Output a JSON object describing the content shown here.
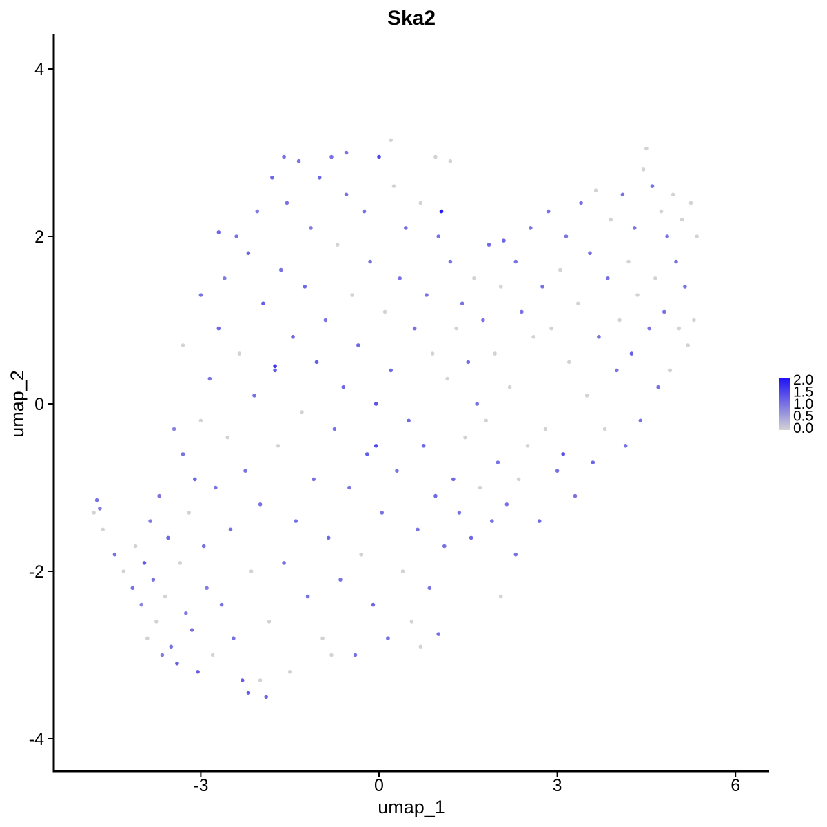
{
  "chart_data": {
    "type": "scatter",
    "title": "Ska2",
    "xlabel": "umap_1",
    "ylabel": "umap_2",
    "xlim": [
      -5.8,
      6.5
    ],
    "ylim": [
      -4.35,
      4.4
    ],
    "x_ticks": [
      -3,
      0,
      3,
      6
    ],
    "x_tick_labels": [
      "-3",
      "0",
      "3",
      "6"
    ],
    "y_ticks": [
      -4,
      -2,
      0,
      2,
      4
    ],
    "y_tick_labels": [
      "-4",
      "-2",
      "0",
      "2",
      "4"
    ],
    "grid": false,
    "legend": {
      "placement": "right",
      "type": "colorbar",
      "min": 0.0,
      "max": 2.0,
      "labels": [
        "2.0",
        "1.5",
        "1.0",
        "0.5",
        "0.0"
      ],
      "low_color": "#d3d3d3",
      "high_color": "#1e10f5"
    },
    "points": [
      [
        -4.75,
        -1.15,
        1.0
      ],
      [
        -4.7,
        -1.25,
        0.9
      ],
      [
        -4.8,
        -1.3,
        0.0
      ],
      [
        -4.65,
        -1.5,
        0.0
      ],
      [
        -4.45,
        -1.8,
        1.0
      ],
      [
        -4.3,
        -2.0,
        0.0
      ],
      [
        -4.15,
        -2.2,
        1.0
      ],
      [
        -4.1,
        -1.7,
        0.0
      ],
      [
        -4.0,
        -2.4,
        0.8
      ],
      [
        -3.95,
        -1.9,
        1.2
      ],
      [
        -3.9,
        -2.8,
        0.0
      ],
      [
        -3.85,
        -1.4,
        0.9
      ],
      [
        -3.8,
        -2.1,
        1.0
      ],
      [
        -3.75,
        -2.6,
        0.0
      ],
      [
        -3.7,
        -1.1,
        1.0
      ],
      [
        -3.65,
        -3.0,
        0.9
      ],
      [
        -3.6,
        -2.3,
        0.0
      ],
      [
        -3.55,
        -1.6,
        1.1
      ],
      [
        -3.5,
        -2.9,
        1.0
      ],
      [
        -3.45,
        -0.3,
        0.8
      ],
      [
        -3.4,
        -3.1,
        1.2
      ],
      [
        -3.35,
        -1.9,
        0.0
      ],
      [
        -3.3,
        -0.6,
        1.0
      ],
      [
        -3.25,
        -2.5,
        0.9
      ],
      [
        -3.2,
        -1.3,
        0.0
      ],
      [
        -3.15,
        -2.7,
        1.0
      ],
      [
        -3.1,
        -0.9,
        1.1
      ],
      [
        -3.05,
        -3.2,
        1.2
      ],
      [
        -3.0,
        -0.2,
        0.0
      ],
      [
        -2.95,
        -1.7,
        1.0
      ],
      [
        -2.9,
        -2.2,
        0.9
      ],
      [
        -2.85,
        0.3,
        1.0
      ],
      [
        -2.8,
        -3.0,
        0.0
      ],
      [
        -2.75,
        -1.0,
        1.0
      ],
      [
        -2.7,
        0.9,
        1.1
      ],
      [
        -2.65,
        -2.4,
        1.0
      ],
      [
        -2.6,
        1.5,
        0.9
      ],
      [
        -2.55,
        -0.4,
        0.0
      ],
      [
        -2.5,
        -1.5,
        1.0
      ],
      [
        -2.45,
        -2.8,
        1.0
      ],
      [
        -2.4,
        2.0,
        1.0
      ],
      [
        -2.35,
        0.6,
        0.0
      ],
      [
        -2.3,
        -3.3,
        1.2
      ],
      [
        -2.25,
        -0.8,
        1.0
      ],
      [
        -2.2,
        1.8,
        1.1
      ],
      [
        -2.15,
        -2.0,
        0.0
      ],
      [
        -2.1,
        0.1,
        1.0
      ],
      [
        -2.05,
        2.3,
        0.9
      ],
      [
        -2.0,
        -1.2,
        1.0
      ],
      [
        -1.95,
        1.2,
        1.2
      ],
      [
        -1.9,
        -3.5,
        1.1
      ],
      [
        -1.85,
        -2.6,
        0.0
      ],
      [
        -1.8,
        2.7,
        1.1
      ],
      [
        -1.75,
        0.4,
        1.2
      ],
      [
        -1.7,
        -0.5,
        0.0
      ],
      [
        -1.65,
        1.6,
        1.0
      ],
      [
        -1.6,
        -1.9,
        1.0
      ],
      [
        -1.55,
        2.4,
        1.0
      ],
      [
        -1.5,
        -3.2,
        0.0
      ],
      [
        -1.45,
        0.8,
        1.1
      ],
      [
        -1.4,
        -1.4,
        1.0
      ],
      [
        -1.35,
        2.9,
        1.0
      ],
      [
        -1.3,
        -0.1,
        0.0
      ],
      [
        -1.25,
        1.4,
        1.1
      ],
      [
        -1.2,
        -2.3,
        1.0
      ],
      [
        -1.15,
        2.1,
        0.9
      ],
      [
        -1.1,
        -0.9,
        1.0
      ],
      [
        -1.05,
        0.5,
        1.2
      ],
      [
        -1.0,
        2.7,
        1.1
      ],
      [
        -0.95,
        -2.8,
        0.0
      ],
      [
        -0.9,
        1.0,
        1.0
      ],
      [
        -0.85,
        -1.6,
        1.1
      ],
      [
        -0.8,
        2.95,
        1.0
      ],
      [
        -0.75,
        -0.3,
        1.0
      ],
      [
        -0.7,
        1.9,
        0.0
      ],
      [
        -0.65,
        -2.1,
        1.0
      ],
      [
        -0.6,
        0.2,
        1.1
      ],
      [
        -0.55,
        2.5,
        1.0
      ],
      [
        -0.5,
        -1.0,
        1.0
      ],
      [
        -0.45,
        1.3,
        0.0
      ],
      [
        -0.4,
        -3.0,
        1.0
      ],
      [
        -0.35,
        0.7,
        1.1
      ],
      [
        -0.3,
        -1.8,
        0.0
      ],
      [
        -0.25,
        2.3,
        1.0
      ],
      [
        -0.2,
        -0.6,
        1.2
      ],
      [
        -0.15,
        1.7,
        1.0
      ],
      [
        -0.1,
        -2.4,
        1.1
      ],
      [
        -0.05,
        0.0,
        1.3
      ],
      [
        0.0,
        2.95,
        1.4
      ],
      [
        0.05,
        -1.3,
        1.0
      ],
      [
        0.1,
        1.1,
        0.0
      ],
      [
        0.15,
        -2.8,
        1.0
      ],
      [
        0.2,
        0.4,
        1.1
      ],
      [
        0.25,
        2.6,
        0.0
      ],
      [
        0.3,
        -0.8,
        1.0
      ],
      [
        0.35,
        1.5,
        1.0
      ],
      [
        0.4,
        -2.0,
        0.0
      ],
      [
        0.45,
        2.1,
        1.0
      ],
      [
        0.5,
        -0.2,
        1.1
      ],
      [
        0.55,
        -2.6,
        0.0
      ],
      [
        0.6,
        0.9,
        1.0
      ],
      [
        0.65,
        -1.5,
        1.0
      ],
      [
        0.7,
        2.4,
        0.0
      ],
      [
        0.75,
        -0.5,
        1.1
      ],
      [
        0.8,
        1.3,
        1.0
      ],
      [
        0.85,
        -2.2,
        1.0
      ],
      [
        0.9,
        0.6,
        0.0
      ],
      [
        0.95,
        -1.1,
        1.1
      ],
      [
        1.0,
        2.0,
        1.0
      ],
      [
        1.05,
        2.3,
        1.9
      ],
      [
        1.1,
        -1.7,
        1.0
      ],
      [
        1.15,
        0.3,
        0.0
      ],
      [
        1.2,
        1.7,
        1.0
      ],
      [
        1.25,
        -0.9,
        1.1
      ],
      [
        1.3,
        0.9,
        0.0
      ],
      [
        1.35,
        -1.3,
        1.0
      ],
      [
        1.4,
        1.2,
        1.0
      ],
      [
        1.45,
        -0.4,
        0.0
      ],
      [
        1.5,
        0.5,
        1.0
      ],
      [
        1.55,
        -1.6,
        1.1
      ],
      [
        1.6,
        1.5,
        0.0
      ],
      [
        1.65,
        0.0,
        1.0
      ],
      [
        1.7,
        -1.0,
        0.0
      ],
      [
        1.75,
        1.0,
        1.0
      ],
      [
        1.8,
        -0.2,
        0.0
      ],
      [
        1.85,
        1.9,
        1.1
      ],
      [
        1.9,
        -1.4,
        1.0
      ],
      [
        1.95,
        0.6,
        0.0
      ],
      [
        2.0,
        -0.7,
        1.0
      ],
      [
        2.05,
        1.4,
        0.0
      ],
      [
        2.1,
        1.95,
        1.1
      ],
      [
        2.15,
        -1.2,
        1.0
      ],
      [
        2.2,
        0.2,
        0.0
      ],
      [
        2.3,
        1.7,
        1.0
      ],
      [
        2.35,
        -0.9,
        0.0
      ],
      [
        2.4,
        1.1,
        1.0
      ],
      [
        2.5,
        -0.5,
        0.0
      ],
      [
        2.55,
        2.1,
        1.0
      ],
      [
        2.6,
        0.8,
        0.0
      ],
      [
        2.7,
        -1.4,
        1.1
      ],
      [
        2.75,
        1.4,
        1.0
      ],
      [
        2.8,
        -0.3,
        0.0
      ],
      [
        2.85,
        2.3,
        1.0
      ],
      [
        2.9,
        0.9,
        0.0
      ],
      [
        3.0,
        -0.8,
        1.0
      ],
      [
        3.05,
        1.6,
        0.0
      ],
      [
        3.1,
        -0.6,
        1.3
      ],
      [
        3.15,
        2.0,
        1.0
      ],
      [
        3.2,
        0.5,
        0.0
      ],
      [
        3.3,
        -1.1,
        1.0
      ],
      [
        3.35,
        1.2,
        0.0
      ],
      [
        3.4,
        2.4,
        1.0
      ],
      [
        3.5,
        0.1,
        0.0
      ],
      [
        3.55,
        1.8,
        1.0
      ],
      [
        3.6,
        -0.7,
        1.1
      ],
      [
        3.65,
        2.55,
        0.0
      ],
      [
        3.7,
        0.8,
        1.0
      ],
      [
        3.8,
        -0.3,
        0.0
      ],
      [
        3.85,
        1.5,
        1.0
      ],
      [
        3.9,
        2.2,
        0.0
      ],
      [
        4.0,
        0.4,
        1.0
      ],
      [
        4.05,
        1.0,
        0.0
      ],
      [
        4.1,
        2.5,
        1.0
      ],
      [
        4.15,
        -0.5,
        1.0
      ],
      [
        4.2,
        1.7,
        0.0
      ],
      [
        4.25,
        0.6,
        1.2
      ],
      [
        4.3,
        2.1,
        1.0
      ],
      [
        4.35,
        1.3,
        0.0
      ],
      [
        4.4,
        -0.2,
        1.0
      ],
      [
        4.45,
        2.8,
        0.0
      ],
      [
        4.5,
        3.05,
        0.0
      ],
      [
        4.55,
        0.9,
        1.0
      ],
      [
        4.6,
        2.6,
        1.0
      ],
      [
        4.65,
        1.5,
        0.0
      ],
      [
        4.7,
        0.2,
        1.0
      ],
      [
        4.75,
        2.3,
        0.0
      ],
      [
        4.8,
        1.1,
        1.0
      ],
      [
        4.85,
        2.0,
        1.0
      ],
      [
        4.9,
        0.4,
        0.0
      ],
      [
        4.95,
        2.5,
        0.0
      ],
      [
        5.0,
        1.7,
        1.0
      ],
      [
        5.05,
        0.9,
        0.0
      ],
      [
        5.1,
        2.2,
        0.0
      ],
      [
        5.15,
        1.4,
        1.0
      ],
      [
        5.2,
        0.7,
        0.0
      ],
      [
        5.25,
        2.4,
        0.0
      ],
      [
        5.3,
        1.0,
        0.0
      ],
      [
        5.35,
        2.0,
        0.0
      ],
      [
        -0.55,
        3.0,
        1.0
      ],
      [
        0.2,
        3.15,
        0.0
      ],
      [
        1.2,
        2.9,
        0.0
      ],
      [
        0.95,
        2.95,
        0.0
      ],
      [
        -2.2,
        -3.45,
        1.2
      ],
      [
        -2.0,
        -3.3,
        0.0
      ],
      [
        -3.3,
        0.7,
        0.0
      ],
      [
        -3.0,
        1.3,
        1.0
      ],
      [
        -2.7,
        2.05,
        1.1
      ],
      [
        -1.75,
        0.45,
        1.6
      ],
      [
        -0.05,
        -0.5,
        1.4
      ],
      [
        -1.6,
        2.95,
        1.0
      ],
      [
        -0.8,
        -3.0,
        0.0
      ],
      [
        0.7,
        -2.9,
        0.0
      ],
      [
        1.0,
        -2.75,
        1.0
      ],
      [
        2.3,
        -1.8,
        1.0
      ],
      [
        2.05,
        -2.3,
        0.0
      ]
    ]
  }
}
